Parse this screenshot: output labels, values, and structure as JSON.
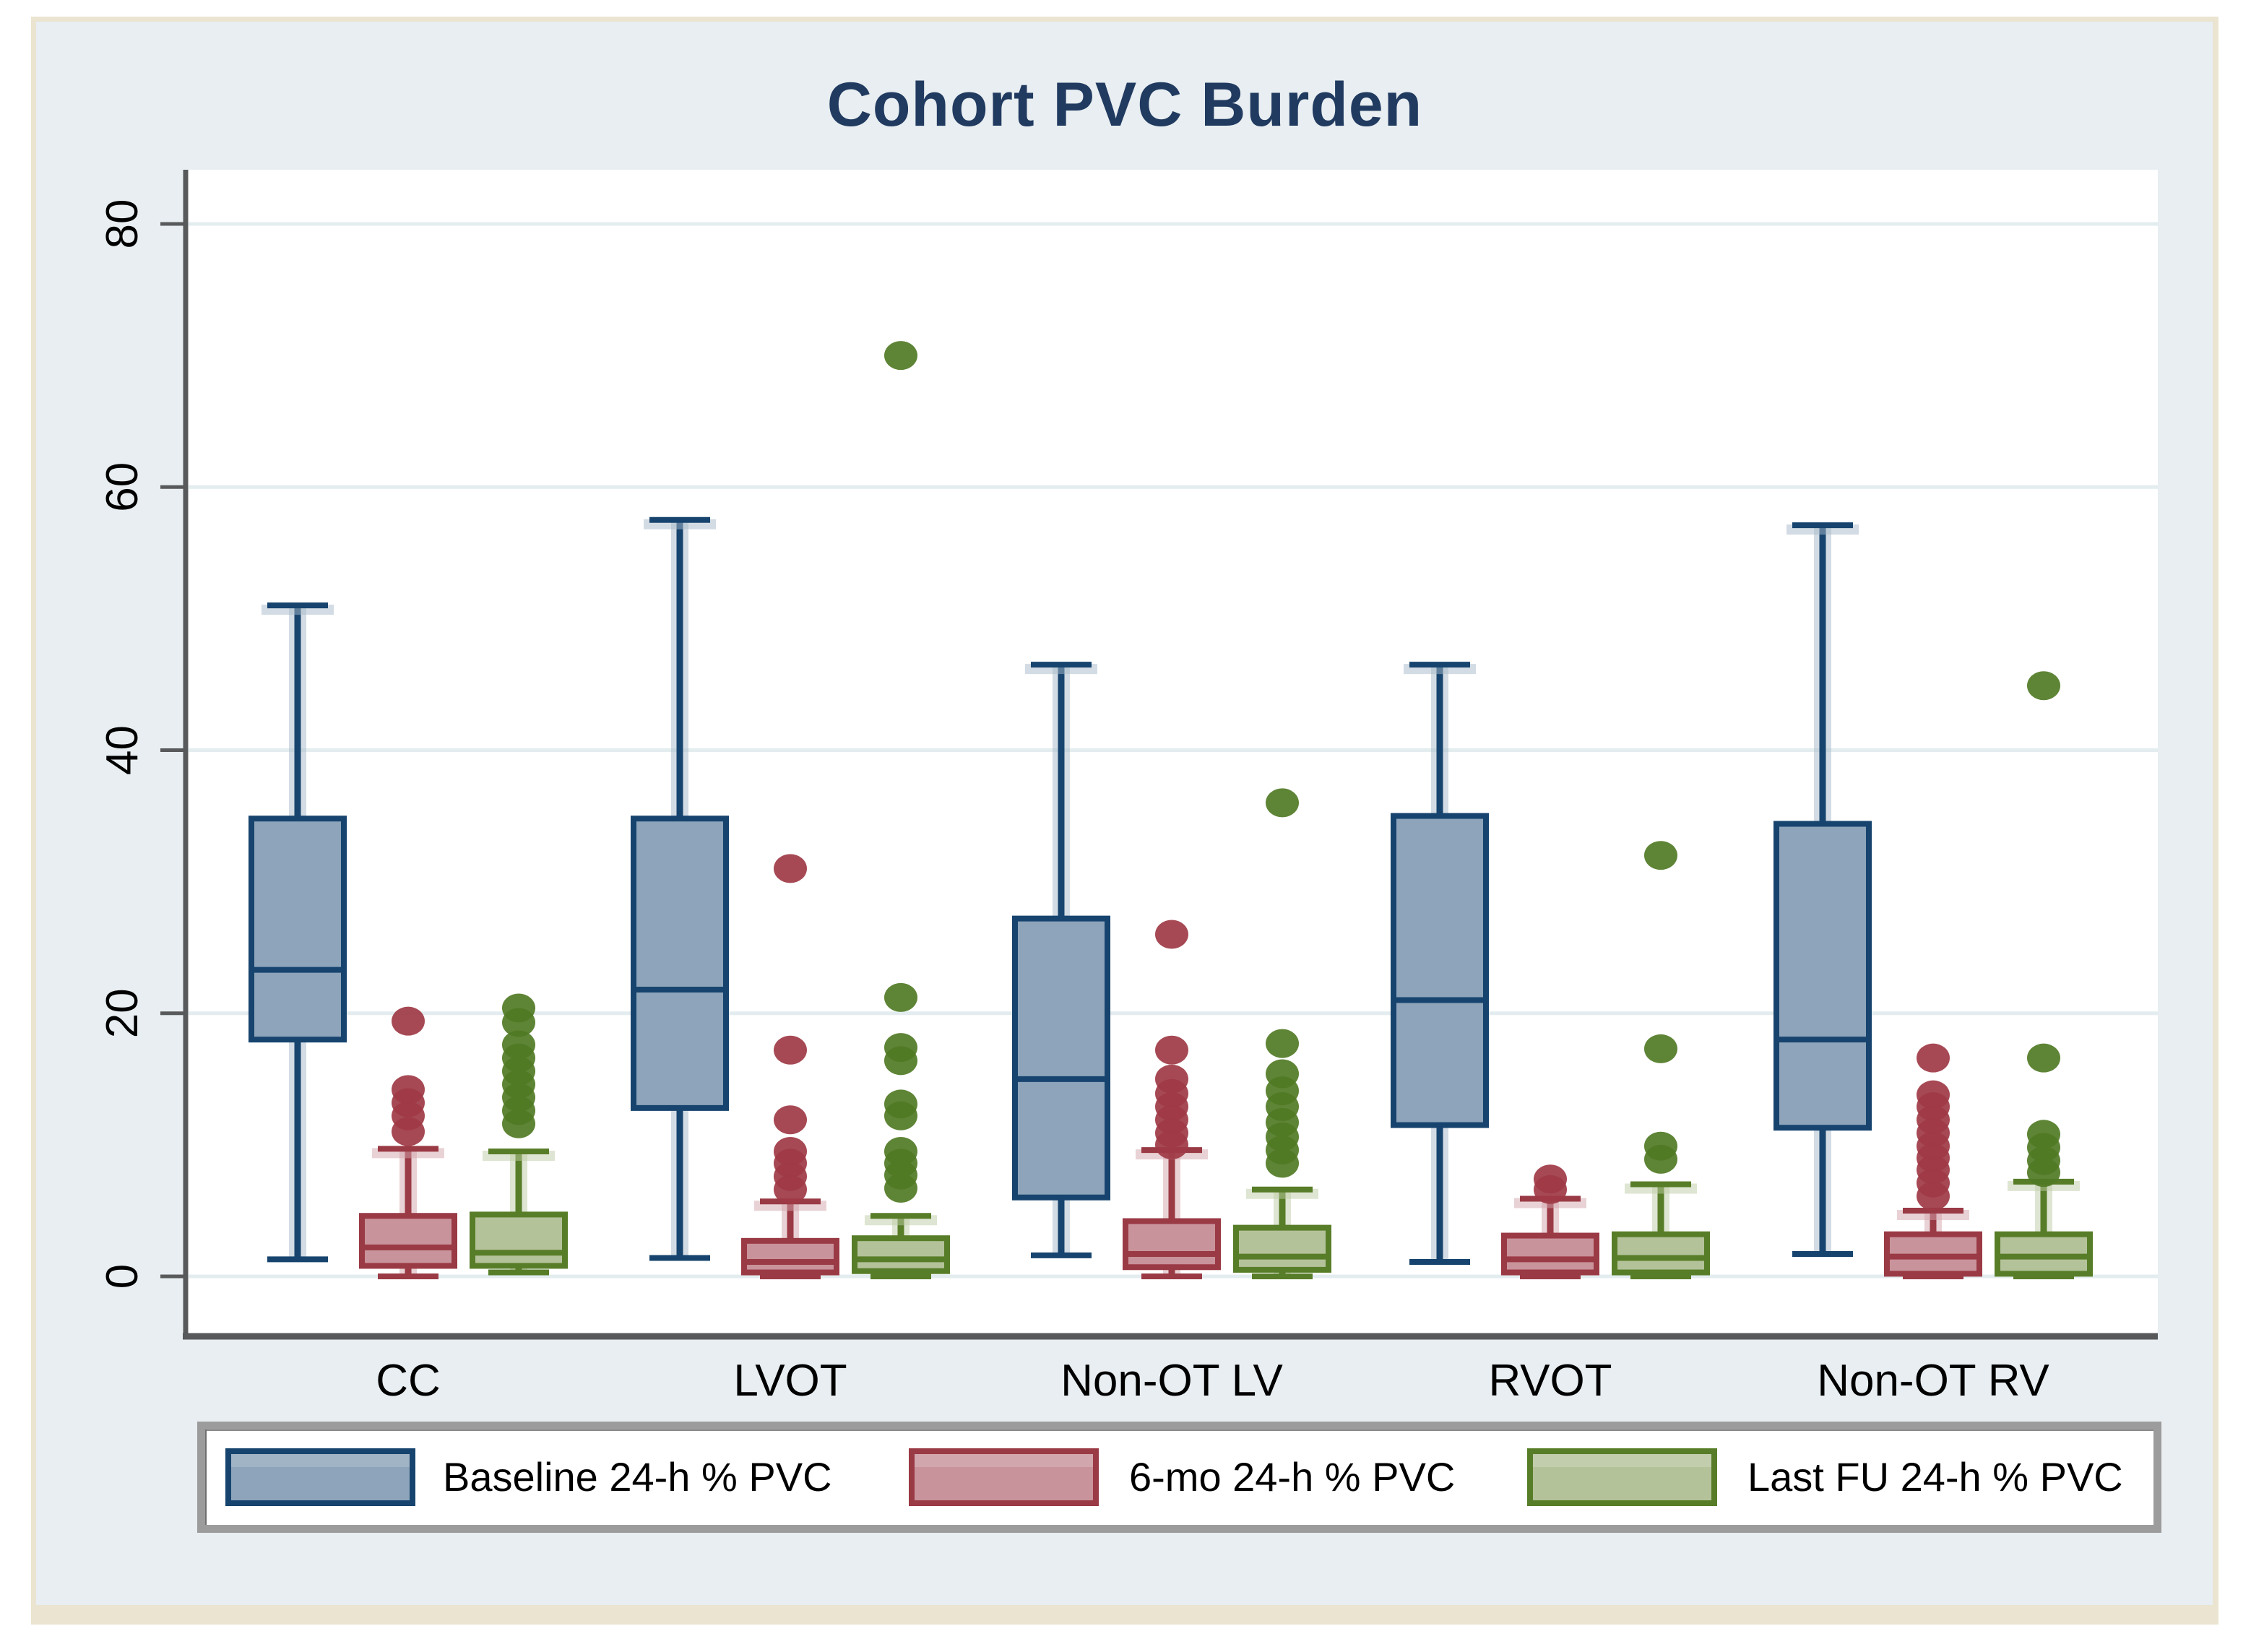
{
  "title": "Cohort PVC Burden",
  "legend": {
    "items": [
      {
        "label": "Baseline 24-h % PVC",
        "fill": "#8da4ba",
        "border": "#17446e"
      },
      {
        "label": "6-mo 24-h % PVC",
        "fill": "#c9939b",
        "border": "#9a3a45"
      },
      {
        "label": "Last FU 24-h % PVC",
        "fill": "#b4c29a",
        "border": "#587d28"
      }
    ]
  },
  "colors": {
    "figure_background": "#e8eef1",
    "frame_border": "#eae4d0",
    "plot_background": "#ffffff",
    "gridline": "#e3edef",
    "axis_line": "#58595b",
    "title_text": "#213a60",
    "tick_text": "#000000"
  },
  "chart_data": {
    "type": "boxplot",
    "title": "Cohort PVC Burden",
    "categories": [
      "CC",
      "LVOT",
      "Non-OT LV",
      "RVOT",
      "Non-OT RV"
    ],
    "y_ticks": [
      0,
      20,
      40,
      60,
      80
    ],
    "ylim": [
      -4.3,
      84.1
    ],
    "grid": true,
    "legend_position": "bottom",
    "series": [
      {
        "name": "Baseline 24-h % PVC",
        "fill": "#8da4ba",
        "stroke": "#17446e",
        "halo": "#a9bbca",
        "dot": "#17446e",
        "boxes": [
          {
            "category": "CC",
            "whislo": 1.3,
            "q1": 18.0,
            "med": 23.3,
            "q3": 34.8,
            "whishi": 51.0,
            "outliers": []
          },
          {
            "category": "LVOT",
            "whislo": 1.4,
            "q1": 12.8,
            "med": 21.8,
            "q3": 34.8,
            "whishi": 57.5,
            "outliers": []
          },
          {
            "category": "Non-OT LV",
            "whislo": 1.6,
            "q1": 6.0,
            "med": 15.0,
            "q3": 27.2,
            "whishi": 46.5,
            "outliers": []
          },
          {
            "category": "RVOT",
            "whislo": 1.1,
            "q1": 11.5,
            "med": 21.0,
            "q3": 35.0,
            "whishi": 46.5,
            "outliers": []
          },
          {
            "category": "Non-OT RV",
            "whislo": 1.7,
            "q1": 11.3,
            "med": 18.0,
            "q3": 34.4,
            "whishi": 57.1,
            "outliers": []
          }
        ]
      },
      {
        "name": "6-mo 24-h % PVC",
        "fill": "#c9939b",
        "stroke": "#9a3a45",
        "halo": "#d4a6ad",
        "dot": "#9e3a45",
        "boxes": [
          {
            "category": "CC",
            "whislo": 0,
            "q1": 0.8,
            "med": 2.2,
            "q3": 4.6,
            "whishi": 9.7,
            "outliers": [
              19.4,
              14.2,
              13.2,
              12.2,
              11.0
            ]
          },
          {
            "category": "LVOT",
            "whislo": 0,
            "q1": 0.3,
            "med": 1.1,
            "q3": 2.7,
            "whishi": 5.7,
            "outliers": [
              31,
              17.2,
              11.9,
              9.5,
              8.6,
              7.6,
              6.6
            ]
          },
          {
            "category": "Non-OT LV",
            "whislo": 0,
            "q1": 0.7,
            "med": 1.7,
            "q3": 4.2,
            "whishi": 9.6,
            "outliers": [
              26,
              17.2,
              15.0,
              13.9,
              12.9,
              11.9,
              10.9,
              10.0
            ]
          },
          {
            "category": "RVOT",
            "whislo": 0,
            "q1": 0.3,
            "med": 1.3,
            "q3": 3.1,
            "whishi": 5.9,
            "outliers": [
              7.4,
              6.6
            ]
          },
          {
            "category": "Non-OT RV",
            "whislo": 0,
            "q1": 0.2,
            "med": 1.5,
            "q3": 3.2,
            "whishi": 5.0,
            "outliers": [
              16.6,
              13.8,
              12.9,
              11.9,
              10.9,
              9.9,
              9.0,
              8.1,
              7.1,
              6.1
            ]
          }
        ]
      },
      {
        "name": "Last FU 24-h % PVC",
        "fill": "#b4c29a",
        "stroke": "#587d28",
        "halo": "#bfcda6",
        "dot": "#507a24",
        "boxes": [
          {
            "category": "CC",
            "whislo": 0.3,
            "q1": 0.8,
            "med": 1.8,
            "q3": 4.7,
            "whishi": 9.5,
            "outliers": [
              20.4,
              19.3,
              17.6,
              16.6,
              15.6,
              14.6,
              13.6,
              12.6,
              11.6
            ]
          },
          {
            "category": "LVOT",
            "whislo": 0,
            "q1": 0.4,
            "med": 1.3,
            "q3": 2.9,
            "whishi": 4.6,
            "outliers": [
              70,
              21.2,
              17.4,
              16.4,
              13.1,
              12.2,
              9.5,
              8.6,
              7.7,
              6.7
            ]
          },
          {
            "category": "Non-OT LV",
            "whislo": 0,
            "q1": 0.5,
            "med": 1.5,
            "q3": 3.7,
            "whishi": 6.6,
            "outliers": [
              36,
              17.7,
              15.4,
              14.1,
              12.9,
              11.7,
              10.6,
              9.6,
              8.6
            ]
          },
          {
            "category": "RVOT",
            "whislo": 0,
            "q1": 0.3,
            "med": 1.4,
            "q3": 3.2,
            "whishi": 7.0,
            "outliers": [
              32,
              17.3,
              9.9,
              8.9
            ]
          },
          {
            "category": "Non-OT RV",
            "whislo": 0,
            "q1": 0.2,
            "med": 1.5,
            "q3": 3.2,
            "whishi": 7.2,
            "outliers": [
              44.9,
              16.6,
              10.8,
              9.8,
              8.8,
              7.9
            ]
          }
        ]
      }
    ]
  }
}
